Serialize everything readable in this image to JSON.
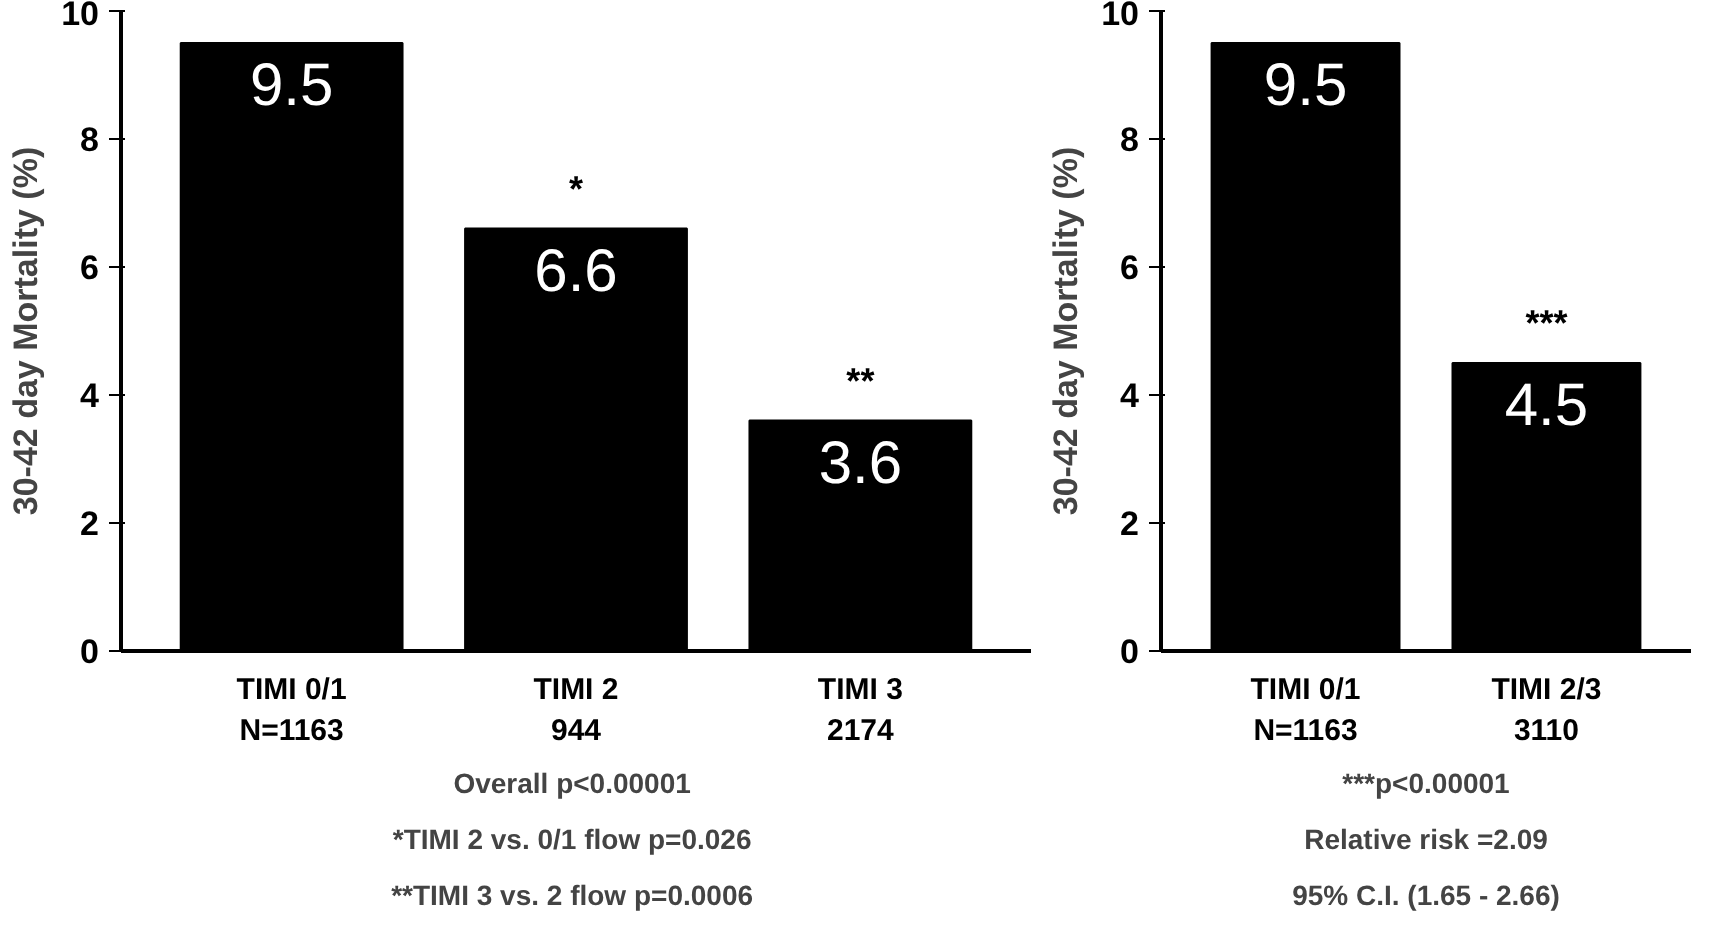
{
  "chart_data": [
    {
      "type": "bar",
      "ylabel": "30-42 day Mortality (%)",
      "categories": [
        "TIMI 0/1\nN=1163",
        "TIMI 2\n944",
        "TIMI 3\n2174"
      ],
      "values": [
        9.5,
        6.6,
        3.6
      ],
      "color": "#000000",
      "ylim": [
        0,
        10
      ],
      "yticks": [
        0,
        2,
        4,
        6,
        8,
        10
      ],
      "grid": false,
      "data_labels": true,
      "annotations": [
        {
          "text": "*",
          "x": "TIMI 2\n944",
          "y": 6.6
        },
        {
          "text": "**",
          "x": "TIMI 3\n2174",
          "y": 3.6
        },
        "Overall  p<0.00001",
        "*TIMI 2 vs. 0/1 flow  p=0.026",
        "**TIMI 3 vs. 2 flow  p=0.0006"
      ]
    },
    {
      "type": "bar",
      "ylabel": "30-42 day Mortality (%)",
      "categories": [
        "TIMI 0/1\nN=1163",
        "TIMI 2/3\n3110"
      ],
      "values": [
        9.5,
        4.5
      ],
      "color": "#000000",
      "ylim": [
        0,
        10
      ],
      "yticks": [
        0,
        2,
        4,
        6,
        8,
        10
      ],
      "grid": false,
      "data_labels": true,
      "annotations": [
        {
          "text": "***",
          "x": "TIMI 2/3\n3110",
          "y": 4.5
        },
        "***p<0.00001",
        "Relative risk =2.09",
        "95% C.I. (1.65 - 2.66)"
      ]
    }
  ]
}
